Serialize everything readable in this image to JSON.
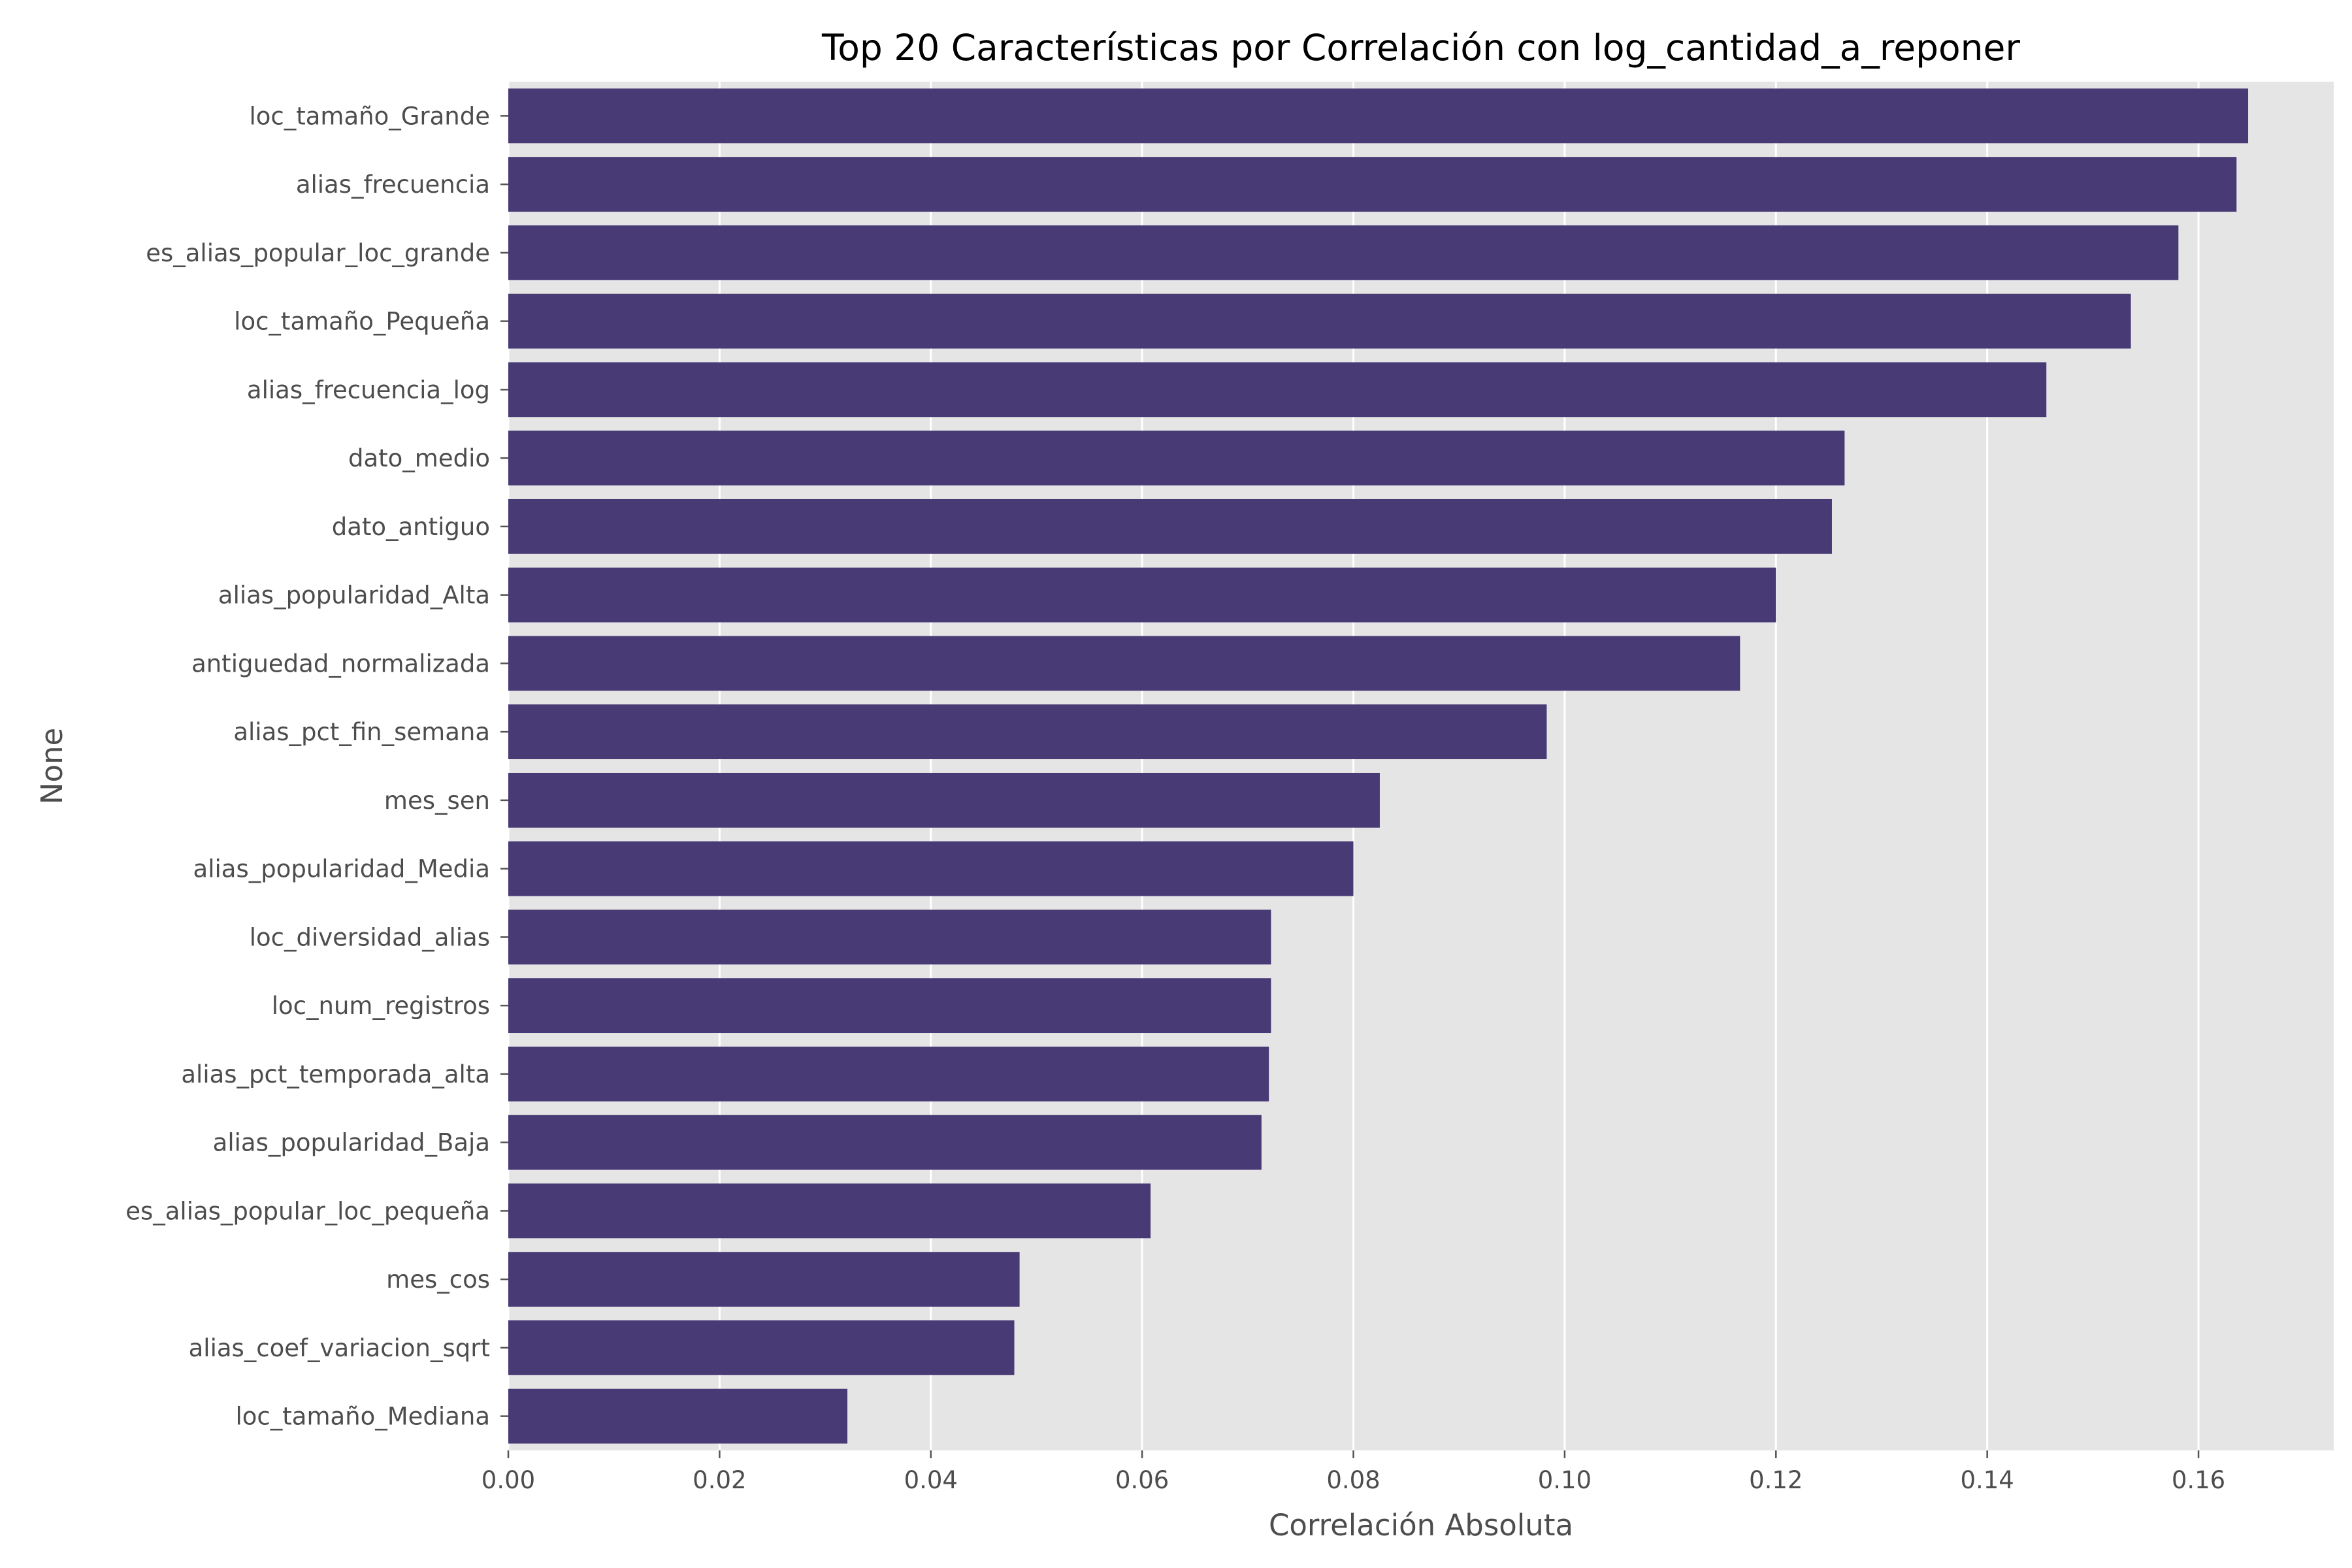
{
  "chart_data": {
    "type": "bar",
    "orientation": "horizontal",
    "title": "Top 20 Características por Correlación con log_cantidad_a_reponer",
    "xlabel": "Correlación Absoluta",
    "ylabel": "None",
    "xlim": [
      0,
      0.1728
    ],
    "xticks": [
      0.0,
      0.02,
      0.04,
      0.06,
      0.08,
      0.1,
      0.12,
      0.14,
      0.16
    ],
    "xtick_labels": [
      "0.00",
      "0.02",
      "0.04",
      "0.06",
      "0.08",
      "0.10",
      "0.12",
      "0.14",
      "0.16"
    ],
    "grid": true,
    "bar_color": "#483a75",
    "background_color": "#e5e5e5",
    "grid_color": "#ffffff",
    "categories": [
      "loc_tamaño_Grande",
      "alias_frecuencia",
      "es_alias_popular_loc_grande",
      "loc_tamaño_Pequeña",
      "alias_frecuencia_log",
      "dato_medio",
      "dato_antiguo",
      "alias_popularidad_Alta",
      "antiguedad_normalizada",
      "alias_pct_fin_semana",
      "mes_sen",
      "alias_popularidad_Media",
      "loc_diversidad_alias",
      "loc_num_registros",
      "alias_pct_temporada_alta",
      "alias_popularidad_Baja",
      "es_alias_popular_loc_pequeña",
      "mes_cos",
      "alias_coef_variacion_sqrt",
      "loc_tamaño_Mediana"
    ],
    "values": [
      0.1647,
      0.1636,
      0.1581,
      0.1536,
      0.1456,
      0.1265,
      0.1253,
      0.12,
      0.1166,
      0.0983,
      0.0825,
      0.08,
      0.0722,
      0.0722,
      0.072,
      0.0713,
      0.0608,
      0.0484,
      0.0479,
      0.0321
    ]
  }
}
